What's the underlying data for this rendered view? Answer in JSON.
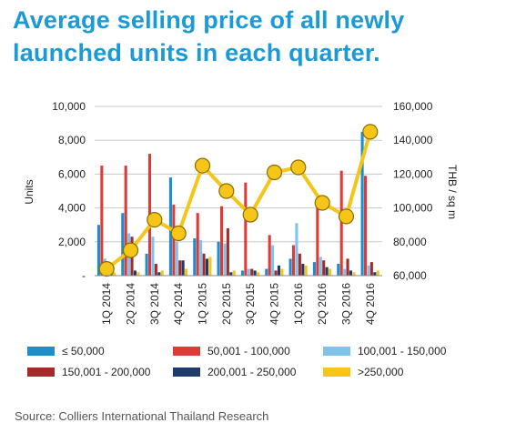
{
  "title_lines": [
    "Average selling price of all newly",
    "launched units in each quarter."
  ],
  "source": "Source: Colliers International Thailand Research",
  "chart_data": {
    "type": "bar",
    "categories": [
      "1Q 2014",
      "2Q 2014",
      "3Q 2014",
      "4Q 2014",
      "1Q 2015",
      "2Q 2015",
      "3Q 2015",
      "4Q 2015",
      "1Q 2016",
      "2Q 2016",
      "3Q 2016",
      "4Q 2016"
    ],
    "ylabel": "Units",
    "y2label": "THB / sq m",
    "ylim": [
      0,
      10000
    ],
    "y2lim": [
      60000,
      160000
    ],
    "yticks": [
      "-",
      "2,000",
      "4,000",
      "6,000",
      "8,000",
      "10,000"
    ],
    "y2ticks": [
      "60,000",
      "80,000",
      "100,000",
      "120,000",
      "140,000",
      "160,000"
    ],
    "grid": true,
    "legend_placement": "bottom",
    "series": [
      {
        "name": "≤ 50,000",
        "color": "#1a8fcc",
        "values": [
          3000,
          3700,
          1300,
          5800,
          2200,
          2000,
          300,
          400,
          1000,
          800,
          700,
          8500
        ]
      },
      {
        "name": "50,001 - 100,000",
        "color": "#e03a36",
        "values": [
          6500,
          6500,
          7200,
          4200,
          3700,
          4100,
          5500,
          2400,
          1800,
          4200,
          6200,
          5900
        ]
      },
      {
        "name": "100,001 - 150,000",
        "color": "#7fc4e8",
        "values": [
          1000,
          2500,
          2300,
          2000,
          2100,
          1900,
          400,
          1800,
          3100,
          1100,
          400,
          600
        ]
      },
      {
        "name": "150,001 - 200,000",
        "color": "#a52a2a",
        "values": [
          800,
          2300,
          700,
          900,
          1300,
          2800,
          400,
          300,
          1300,
          900,
          1000,
          800
        ]
      },
      {
        "name": "200,001 - 250,000",
        "color": "#1f3b6e",
        "values": [
          200,
          300,
          200,
          900,
          1000,
          200,
          300,
          600,
          700,
          500,
          300,
          200
        ]
      },
      {
        "name": ">250,000",
        "color": "#f5c518",
        "values": [
          200,
          200,
          300,
          400,
          1100,
          300,
          200,
          400,
          600,
          400,
          200,
          300
        ],
        "line_values": [
          64000,
          75000,
          93000,
          85000,
          125000,
          110000,
          96000,
          121000,
          124000,
          103000,
          95000,
          145000
        ]
      }
    ]
  }
}
